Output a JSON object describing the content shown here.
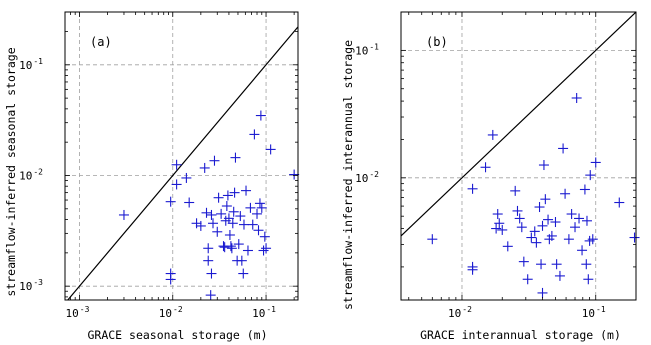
{
  "chart_data": [
    {
      "type": "scatter",
      "panel_label": "(a)",
      "xlabel": "GRACE seasonal storage (m)",
      "ylabel": "streamflow-inferred seasonal storage",
      "xscale": "log",
      "yscale": "log",
      "xlim": [
        0.0007,
        0.22
      ],
      "ylim": [
        0.00075,
        0.3
      ],
      "grid": true,
      "reference_line": "1:1",
      "marker": "+",
      "marker_color": "#1a1ad0",
      "xticks": [
        {
          "value": 0.001,
          "base": "10",
          "exp": "-3"
        },
        {
          "value": 0.01,
          "base": "10",
          "exp": "-2"
        },
        {
          "value": 0.1,
          "base": "10",
          "exp": "-1"
        }
      ],
      "yticks": [
        {
          "value": 0.001,
          "base": "10",
          "exp": "-3"
        },
        {
          "value": 0.01,
          "base": "10",
          "exp": "-2"
        },
        {
          "value": 0.1,
          "base": "10",
          "exp": "-1"
        }
      ],
      "points": [
        [
          0.003,
          0.0044
        ],
        [
          0.0095,
          0.0058
        ],
        [
          0.0095,
          0.0013
        ],
        [
          0.0095,
          0.00115
        ],
        [
          0.011,
          0.0125
        ],
        [
          0.011,
          0.0083
        ],
        [
          0.014,
          0.0095
        ],
        [
          0.015,
          0.0057
        ],
        [
          0.018,
          0.0037
        ],
        [
          0.02,
          0.0035
        ],
        [
          0.022,
          0.0117
        ],
        [
          0.023,
          0.0046
        ],
        [
          0.024,
          0.0022
        ],
        [
          0.024,
          0.0017
        ],
        [
          0.026,
          0.0044
        ],
        [
          0.027,
          0.0037
        ],
        [
          0.028,
          0.0136
        ],
        [
          0.03,
          0.0031
        ],
        [
          0.031,
          0.0063
        ],
        [
          0.033,
          0.0045
        ],
        [
          0.035,
          0.0023
        ],
        [
          0.036,
          0.00225
        ],
        [
          0.037,
          0.0039
        ],
        [
          0.038,
          0.0053
        ],
        [
          0.039,
          0.0066
        ],
        [
          0.04,
          0.0041
        ],
        [
          0.041,
          0.0029
        ],
        [
          0.043,
          0.0022
        ],
        [
          0.044,
          0.0037
        ],
        [
          0.045,
          0.0047
        ],
        [
          0.046,
          0.007
        ],
        [
          0.047,
          0.0145
        ],
        [
          0.049,
          0.0017
        ],
        [
          0.051,
          0.0024
        ],
        [
          0.053,
          0.0043
        ],
        [
          0.055,
          0.0017
        ],
        [
          0.058,
          0.0036
        ],
        [
          0.061,
          0.0073
        ],
        [
          0.064,
          0.0021
        ],
        [
          0.068,
          0.0051
        ],
        [
          0.072,
          0.0036
        ],
        [
          0.075,
          0.0235
        ],
        [
          0.08,
          0.0045
        ],
        [
          0.083,
          0.0032
        ],
        [
          0.086,
          0.0056
        ],
        [
          0.088,
          0.0348
        ],
        [
          0.09,
          0.0051
        ],
        [
          0.094,
          0.0021
        ],
        [
          0.097,
          0.0028
        ],
        [
          0.1,
          0.0022
        ],
        [
          0.112,
          0.0172
        ],
        [
          0.2,
          0.0102
        ],
        [
          0.026,
          0.0013
        ],
        [
          0.0255,
          0.00083
        ],
        [
          0.057,
          0.0013
        ],
        [
          0.042,
          0.0023
        ]
      ]
    },
    {
      "type": "scatter",
      "panel_label": "(b)",
      "xlabel": "GRACE interannual storage (m)",
      "ylabel": "streamflow-inferred interannual storage",
      "xscale": "log",
      "yscale": "log",
      "xlim": [
        0.0035,
        0.2
      ],
      "ylim": [
        0.0011,
        0.2
      ],
      "grid": true,
      "reference_line": "1:1",
      "marker": "+",
      "marker_color": "#1a1ad0",
      "xticks": [
        {
          "value": 0.01,
          "base": "10",
          "exp": "-2"
        },
        {
          "value": 0.1,
          "base": "10",
          "exp": "-1"
        }
      ],
      "yticks": [
        {
          "value": 0.01,
          "base": "10",
          "exp": "-2"
        },
        {
          "value": 0.1,
          "base": "10",
          "exp": "-1"
        }
      ],
      "points": [
        [
          0.006,
          0.0033
        ],
        [
          0.012,
          0.0082
        ],
        [
          0.012,
          0.002
        ],
        [
          0.012,
          0.0019
        ],
        [
          0.015,
          0.0121
        ],
        [
          0.017,
          0.0217
        ],
        [
          0.018,
          0.004
        ],
        [
          0.0185,
          0.0052
        ],
        [
          0.019,
          0.0044
        ],
        [
          0.02,
          0.0039
        ],
        [
          0.022,
          0.0029
        ],
        [
          0.025,
          0.0079
        ],
        [
          0.026,
          0.0055
        ],
        [
          0.027,
          0.0048
        ],
        [
          0.028,
          0.0041
        ],
        [
          0.029,
          0.0022
        ],
        [
          0.031,
          0.0016
        ],
        [
          0.033,
          0.0034
        ],
        [
          0.035,
          0.0038
        ],
        [
          0.036,
          0.0031
        ],
        [
          0.038,
          0.0059
        ],
        [
          0.039,
          0.0021
        ],
        [
          0.04,
          0.0042
        ],
        [
          0.041,
          0.0126
        ],
        [
          0.042,
          0.0068
        ],
        [
          0.044,
          0.0047
        ],
        [
          0.045,
          0.0033
        ],
        [
          0.047,
          0.0035
        ],
        [
          0.05,
          0.0045
        ],
        [
          0.051,
          0.0021
        ],
        [
          0.054,
          0.0017
        ],
        [
          0.057,
          0.017
        ],
        [
          0.059,
          0.0075
        ],
        [
          0.063,
          0.0033
        ],
        [
          0.066,
          0.0052
        ],
        [
          0.072,
          0.0423
        ],
        [
          0.075,
          0.0048
        ],
        [
          0.079,
          0.0027
        ],
        [
          0.083,
          0.0081
        ],
        [
          0.085,
          0.0021
        ],
        [
          0.088,
          0.0016
        ],
        [
          0.091,
          0.0105
        ],
        [
          0.095,
          0.0033
        ],
        [
          0.1,
          0.0132
        ],
        [
          0.15,
          0.0064
        ],
        [
          0.195,
          0.0034
        ],
        [
          0.04,
          0.00125
        ],
        [
          0.09,
          0.0032
        ],
        [
          0.086,
          0.0046
        ],
        [
          0.07,
          0.0041
        ]
      ]
    }
  ]
}
